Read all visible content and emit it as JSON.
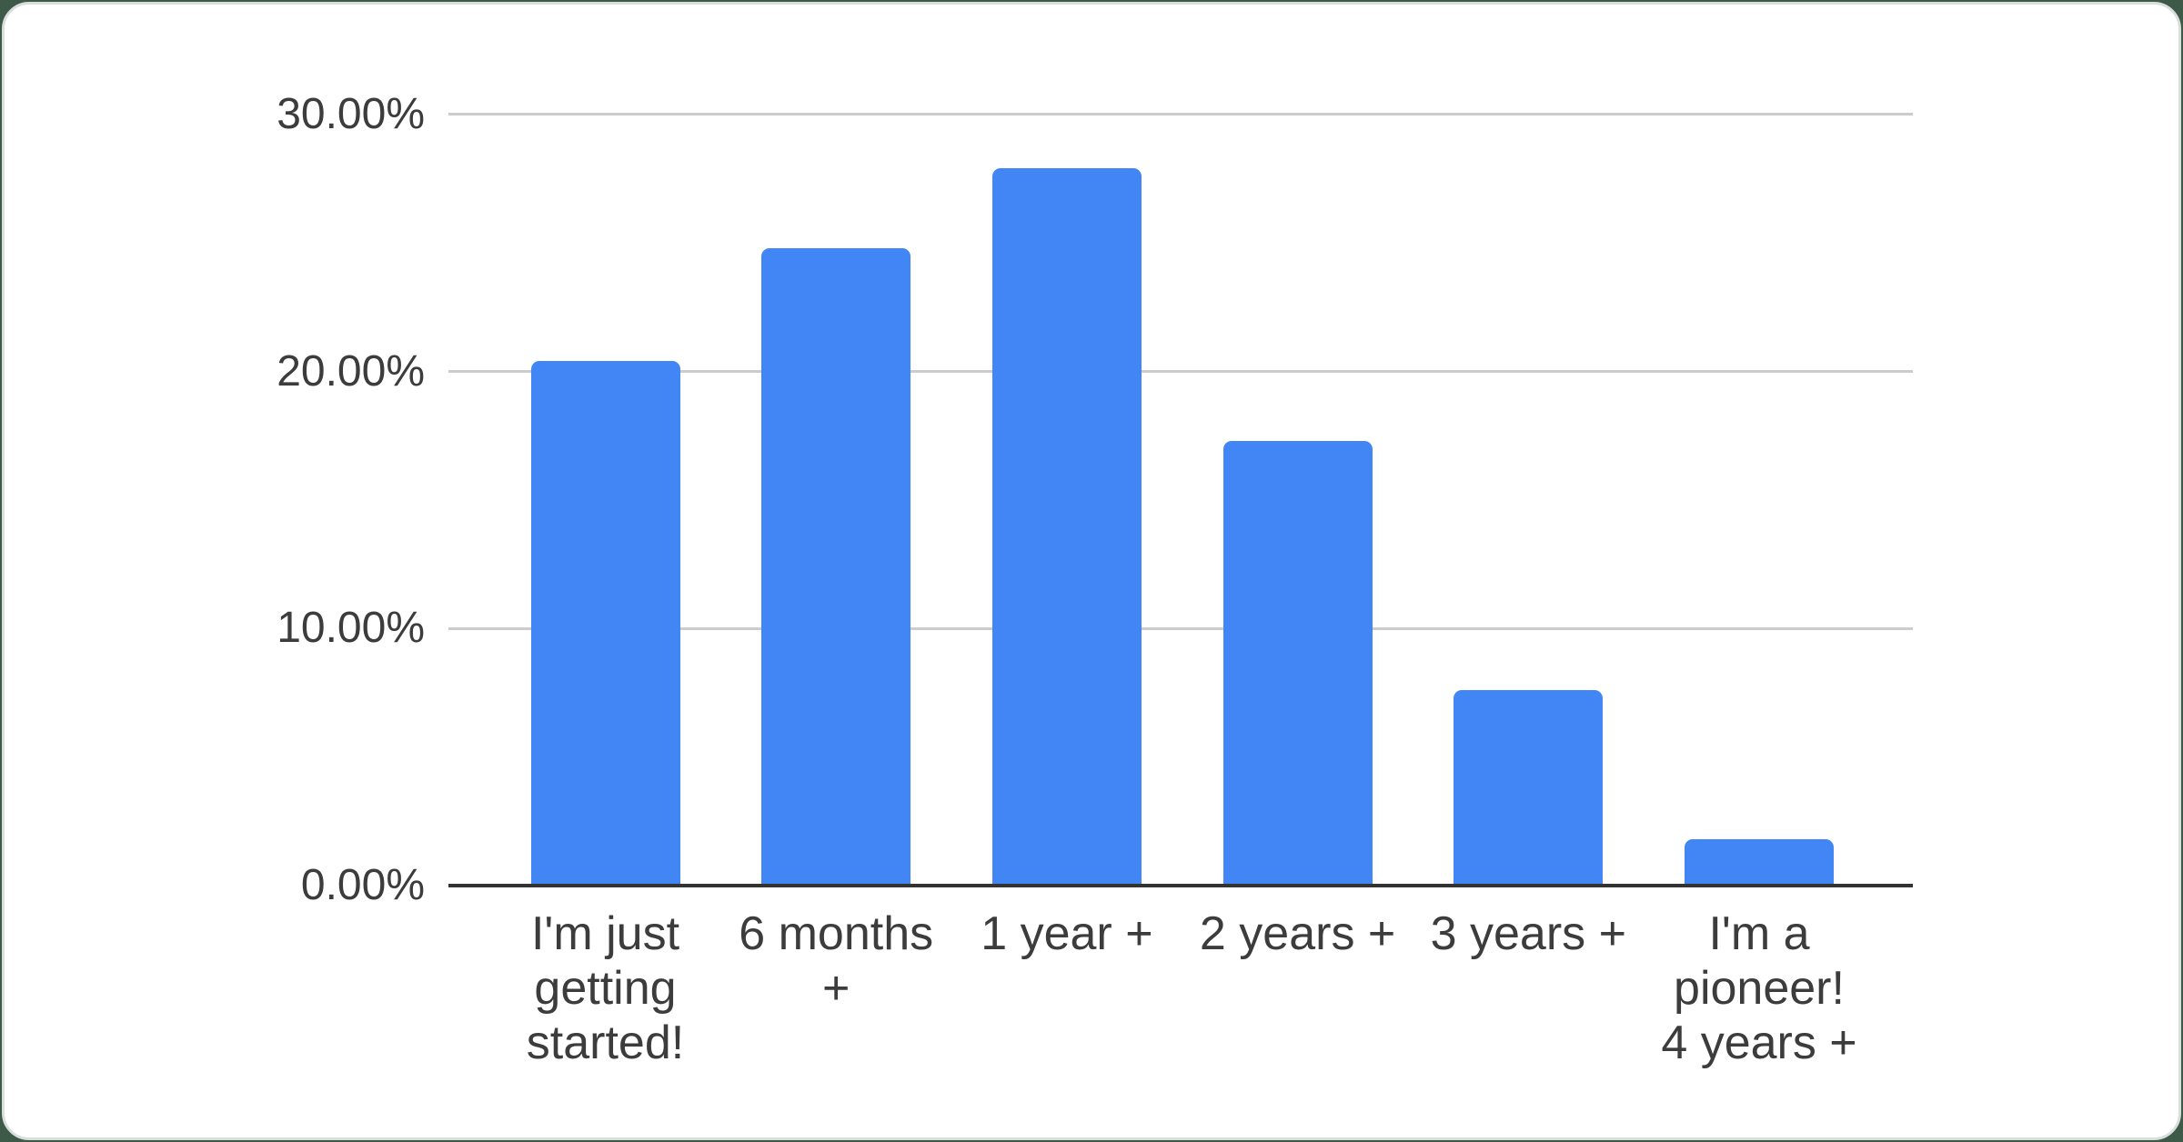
{
  "page": {
    "background_color": "#3d5a49",
    "card_color": "#ffffff"
  },
  "chart_data": {
    "type": "bar",
    "title": "",
    "legend": "none",
    "grid": true,
    "categories": [
      "I'm just getting started!",
      "6 months +",
      "1 year +",
      "2 years +",
      "3 years +",
      "I'm a pioneer! 4 years +"
    ],
    "category_lines": [
      [
        "I'm just",
        "getting",
        "started!"
      ],
      [
        "6 months",
        "+"
      ],
      [
        "1 year +"
      ],
      [
        "2 years +"
      ],
      [
        "3 years +"
      ],
      [
        "I'm a",
        "pioneer!",
        "4 years +"
      ]
    ],
    "values": [
      20.4,
      24.8,
      27.9,
      17.3,
      7.6,
      1.8
    ],
    "value_unit": "%",
    "yticks": [
      {
        "label": "0.00%",
        "value": 0
      },
      {
        "label": "10.00%",
        "value": 10
      },
      {
        "label": "20.00%",
        "value": 20
      },
      {
        "label": "30.00%",
        "value": 30
      }
    ],
    "ylim": [
      0,
      30
    ],
    "bar_color": "#4285f4",
    "axis_line_color": "#333333",
    "gridline_color": "#cccccc",
    "label_color": "#3c3c3c"
  }
}
